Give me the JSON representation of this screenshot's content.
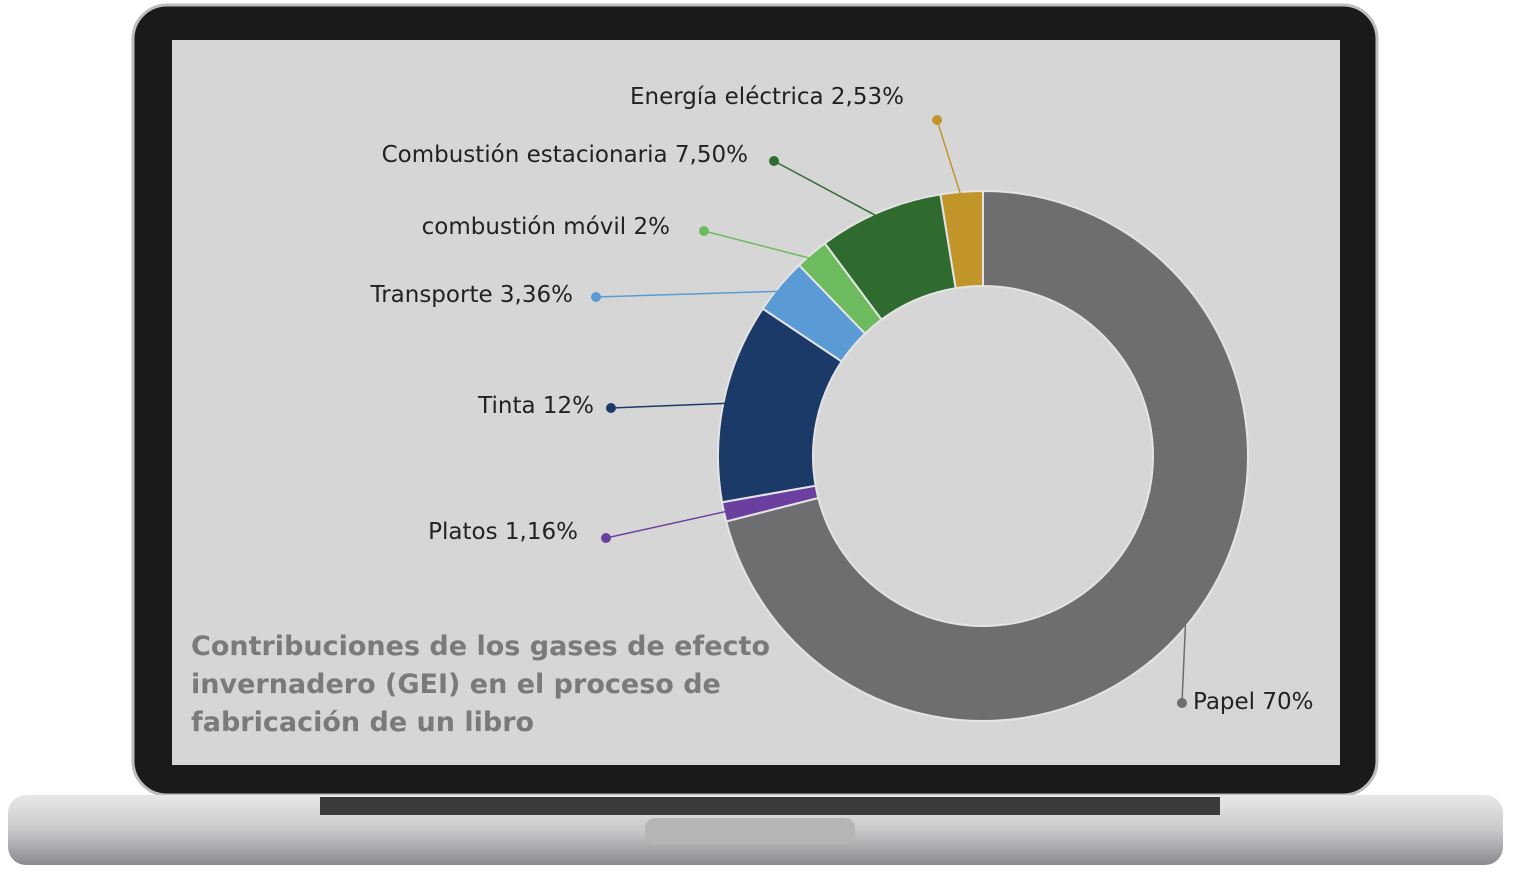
{
  "chart_data": {
    "type": "donut",
    "title": "Contribuciones de los gases de efecto invernadero (GEI) en el proceso de fabricación de un libro",
    "categories": [
      "Papel",
      "Platos",
      "Tinta",
      "Transporte",
      "combustión móvil",
      "Combustión estacionaria",
      "Energía eléctrica"
    ],
    "values": [
      70,
      1.16,
      12,
      3.36,
      2,
      7.5,
      2.53
    ],
    "value_labels": [
      "70%",
      "1,16%",
      "12%",
      "3,36%",
      "2%",
      "7,50%",
      "2,53%"
    ],
    "colors": [
      "#6e6d6f",
      "#6b3fa0",
      "#1b3a68",
      "#5b9bd5",
      "#6dbb5e",
      "#2f6b2f",
      "#c2952b"
    ]
  }
}
